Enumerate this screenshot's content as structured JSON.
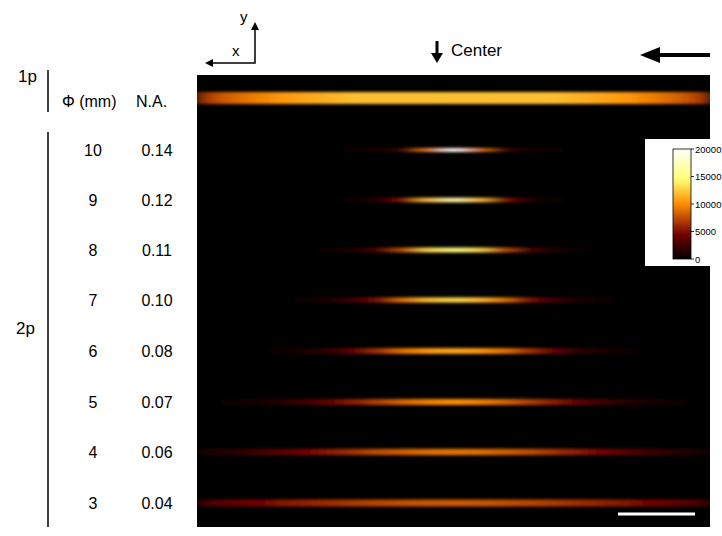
{
  "chart_data": {
    "type": "heatmap",
    "axis_labels": {
      "x": "x",
      "y": "y"
    },
    "annotation": "Center",
    "column_headers": [
      "Φ (mm)",
      "N.A."
    ],
    "groups": [
      "1p",
      "2p"
    ],
    "rows": [
      {
        "group": "1p",
        "diameter": null,
        "na": null,
        "cells": [
          7000,
          8500,
          9500,
          10500,
          11000,
          11500,
          12000,
          12000,
          12000,
          12000,
          12000,
          12000,
          12000,
          12000,
          12000,
          11500,
          11000,
          10500,
          9500,
          8500,
          7000
        ]
      },
      {
        "group": "2p",
        "diameter": 10,
        "na": 0.14,
        "cells": [
          0,
          0,
          0,
          0,
          0,
          0,
          300,
          800,
          2500,
          9000,
          20000,
          9000,
          2500,
          800,
          300,
          0,
          0,
          0,
          0,
          0,
          0
        ]
      },
      {
        "group": "2p",
        "diameter": 9,
        "na": 0.12,
        "cells": [
          0,
          0,
          0,
          0,
          0,
          200,
          600,
          1500,
          5000,
          12000,
          17000,
          12000,
          5000,
          1500,
          600,
          200,
          0,
          0,
          0,
          0,
          0
        ]
      },
      {
        "group": "2p",
        "diameter": 8,
        "na": 0.11,
        "cells": [
          0,
          0,
          0,
          0,
          200,
          500,
          1200,
          3000,
          7500,
          13000,
          15000,
          13000,
          7500,
          3000,
          1200,
          500,
          200,
          0,
          0,
          0,
          0
        ]
      },
      {
        "group": "2p",
        "diameter": 7,
        "na": 0.1,
        "cells": [
          0,
          0,
          0,
          200,
          500,
          1200,
          2500,
          5000,
          9000,
          12000,
          13000,
          12000,
          9000,
          5000,
          2500,
          1200,
          500,
          200,
          0,
          0,
          0
        ]
      },
      {
        "group": "2p",
        "diameter": 6,
        "na": 0.08,
        "cells": [
          0,
          0,
          200,
          500,
          1000,
          2000,
          4000,
          6500,
          9000,
          10500,
          11000,
          10500,
          9000,
          6500,
          4000,
          2000,
          1000,
          500,
          200,
          0,
          0
        ]
      },
      {
        "group": "2p",
        "diameter": 5,
        "na": 0.07,
        "cells": [
          200,
          400,
          800,
          1500,
          2500,
          4000,
          5500,
          7000,
          8500,
          9500,
          10000,
          9500,
          8500,
          7000,
          5500,
          4000,
          2500,
          1500,
          800,
          400,
          200
        ]
      },
      {
        "group": "2p",
        "diameter": 4,
        "na": 0.06,
        "cells": [
          1000,
          1500,
          2500,
          3500,
          4500,
          5500,
          6500,
          7500,
          8200,
          8800,
          9000,
          8800,
          8200,
          7500,
          6500,
          5500,
          4500,
          3500,
          2500,
          1500,
          1000
        ]
      },
      {
        "group": "2p",
        "diameter": 3,
        "na": 0.04,
        "cells": [
          3000,
          3800,
          4500,
          5200,
          5800,
          6300,
          6800,
          7200,
          7600,
          7900,
          8000,
          7900,
          7600,
          7200,
          6800,
          6300,
          5800,
          5200,
          4500,
          3800,
          3000
        ]
      }
    ],
    "colorbar": {
      "range": [
        0,
        20000
      ],
      "ticks": [
        0,
        5000,
        10000,
        15000,
        20000
      ]
    }
  }
}
